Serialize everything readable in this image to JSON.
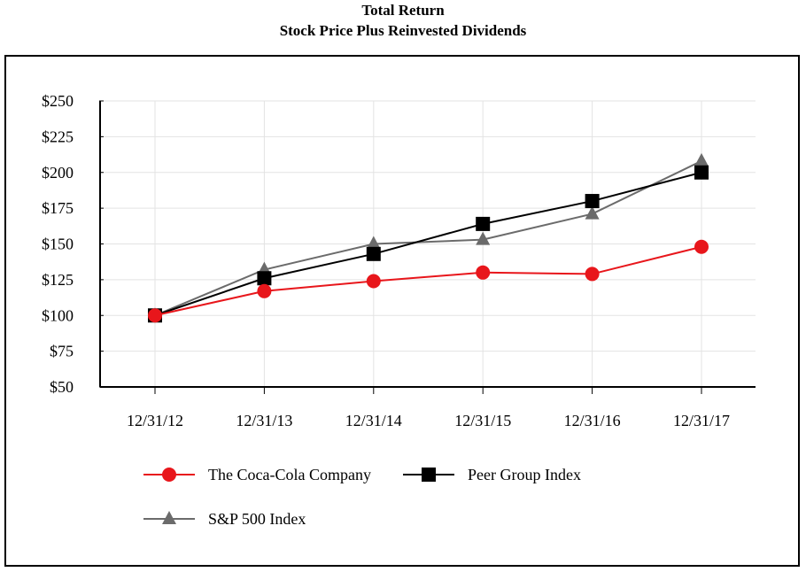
{
  "chart_data": {
    "type": "line",
    "title": "Total Return",
    "subtitle": "Stock Price Plus Reinvested Dividends",
    "categories": [
      "12/31/12",
      "12/31/13",
      "12/31/14",
      "12/31/15",
      "12/31/16",
      "12/31/17"
    ],
    "ylim": [
      50,
      250
    ],
    "yticks": [
      50,
      75,
      100,
      125,
      150,
      175,
      200,
      225,
      250
    ],
    "ytick_labels": [
      "$50",
      "$75",
      "$100",
      "$125",
      "$150",
      "$175",
      "$200",
      "$225",
      "$250"
    ],
    "grid": true,
    "series": [
      {
        "name": "The Coca-Cola Company",
        "color": "#e8161b",
        "marker": "circle",
        "values": [
          100,
          117,
          124,
          130,
          129,
          148
        ]
      },
      {
        "name": "Peer Group Index",
        "color": "#000000",
        "marker": "square",
        "values": [
          100,
          126,
          143,
          164,
          180,
          200
        ]
      },
      {
        "name": "S&P 500 Index",
        "color": "#6b6b6b",
        "marker": "triangle",
        "values": [
          100,
          132,
          150,
          153,
          171,
          208
        ]
      }
    ]
  }
}
